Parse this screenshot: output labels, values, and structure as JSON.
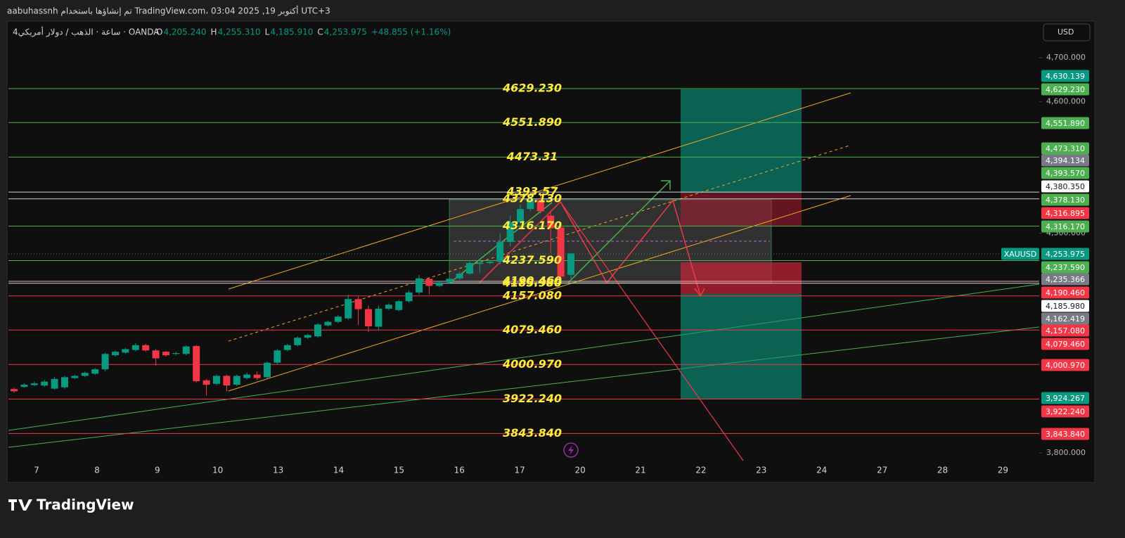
{
  "header": {
    "author_line": "aabuhassnh تم إنشاؤها باستخدام TradingView.com، 03:04 2025 ,19 أكتوبر UTC+3",
    "symbol": "4ساعة · الذهب / دولار أمريكي · OANDA",
    "ohlc": [
      {
        "key": "O",
        "value": "4,205.240"
      },
      {
        "key": "H",
        "value": "4,255.310"
      },
      {
        "key": "L",
        "value": "4,185.910"
      },
      {
        "key": "C",
        "value": "4,253.975"
      }
    ],
    "change": "+48.855 (+1.16%)",
    "currency": "USD"
  },
  "chart_data": {
    "type": "candlestick",
    "up_color": "#089981",
    "down_color": "#f23645",
    "candles": {
      "open": [
        3945,
        3950,
        3954,
        3953,
        3946,
        3949,
        3970,
        3975,
        3980,
        3990,
        4022,
        4028,
        4034,
        4045,
        4033,
        4030,
        4025,
        4025,
        4043,
        3965,
        3957,
        3975,
        3955,
        3970,
        3978,
        3972,
        4005,
        4034,
        4045,
        4062,
        4065,
        4090,
        4098,
        4106,
        4150,
        4127,
        4087,
        4128,
        4125,
        4145,
        4165,
        4196,
        4180,
        4188,
        4197,
        4208,
        4230,
        4232,
        4235,
        4280,
        4325,
        4355,
        4375,
        4340,
        4313,
        4205.24
      ],
      "high": [
        3948,
        3958,
        3962,
        3966,
        3972,
        3975,
        3978,
        3985,
        3993,
        4028,
        4033,
        4039,
        4050,
        4048,
        4036,
        4032,
        4030,
        4045,
        4045,
        3968,
        3978,
        3978,
        3978,
        3982,
        3985,
        4008,
        4036,
        4048,
        4065,
        4071,
        4095,
        4101,
        4113,
        4160,
        4158,
        4135,
        4135,
        4140,
        4148,
        4170,
        4205,
        4200,
        4192,
        4199,
        4212,
        4236,
        4242,
        4238,
        4300,
        4340,
        4365,
        4386,
        4392,
        4348,
        4318,
        4255.31
      ],
      "low": [
        3937,
        3948,
        3952,
        3950,
        3944,
        3946,
        3968,
        3972,
        3977,
        3985,
        4019,
        4025,
        4031,
        4030,
        3998,
        4019,
        4022,
        4022,
        3960,
        3930,
        3954,
        3940,
        3952,
        3967,
        3965,
        3969,
        4002,
        4031,
        4042,
        4059,
        4062,
        4087,
        4095,
        4103,
        4091,
        4075,
        4080,
        4125,
        4122,
        4142,
        4160,
        4160,
        4177,
        4185,
        4194,
        4205,
        4210,
        4229,
        4228,
        4270,
        4318,
        4350,
        4345,
        4255,
        4195,
        4185.91
      ],
      "close": [
        3940,
        3955,
        3958,
        3962,
        3968,
        3972,
        3975,
        3982,
        3990,
        4025,
        4030,
        4036,
        4045,
        4033,
        4015,
        4022,
        4027,
        4042,
        3963,
        3955,
        3975,
        3953,
        3975,
        3978,
        3970,
        4005,
        4033,
        4045,
        4062,
        4068,
        4092,
        4098,
        4110,
        4150,
        4127,
        4088,
        4128,
        4137,
        4145,
        4165,
        4197,
        4180,
        4188,
        4196,
        4208,
        4232,
        4233,
        4235,
        4280,
        4325,
        4355,
        4375,
        4350,
        4311,
        4201,
        4253.975
      ]
    },
    "ylim": [
      3774,
      4783
    ],
    "yticks": [
      {
        "value": 4700,
        "label": "4,700.000"
      },
      {
        "value": 4600,
        "label": "4,600.000"
      },
      {
        "value": 4300,
        "label": "4,300.000"
      },
      {
        "value": 3800,
        "label": "3,800.000"
      }
    ],
    "x_labels": [
      "7",
      "8",
      "9",
      "10",
      "13",
      "14",
      "15",
      "16",
      "17",
      "20",
      "21",
      "22",
      "23",
      "24",
      "27",
      "28",
      "29"
    ],
    "levels": [
      {
        "value": 4629.23,
        "label": "4629.230",
        "color": "#4caf50"
      },
      {
        "value": 4551.89,
        "label": "4551.890",
        "color": "#4caf50"
      },
      {
        "value": 4473.31,
        "color": "#4caf50"
      },
      {
        "value": 4393.57,
        "color": "#d1d4dc"
      },
      {
        "value": 4378.13,
        "label": "4378.130",
        "color": "#d1d4dc"
      },
      {
        "value": 4316.17,
        "label": "4316.170",
        "color": "#4caf50"
      },
      {
        "value": 4237.59,
        "label": "4237.590",
        "color": "#4caf50"
      },
      {
        "value": 4190.46,
        "label": "4190.460",
        "color": "#f7a9b3"
      },
      {
        "value": 4185.98,
        "label": "4185.980",
        "color": "#d1d4dc"
      },
      {
        "value": 4157.08,
        "label": "4157.080",
        "color": "#f23645"
      },
      {
        "value": 4079.46,
        "label": "4079.460",
        "color": "#f23645"
      },
      {
        "value": 4000.97,
        "label": "4000.970",
        "color": "#f23645"
      },
      {
        "value": 3922.24,
        "label": "3922.240",
        "color": "#f23645"
      },
      {
        "value": 3843.84,
        "label": "3843.840",
        "color": "#f23645"
      }
    ],
    "symbol_badge": "XAUUSD",
    "price_badges": [
      {
        "label": "4,630.139",
        "color": "#089981"
      },
      {
        "label": "4,629.230",
        "color": "#4caf50"
      },
      {
        "label": "4,551.890",
        "color": "#4caf50"
      },
      {
        "label": "4,473.310",
        "color": "#4caf50"
      },
      {
        "label": "4,394.134",
        "color": "#787b86"
      },
      {
        "label": "4,393.570",
        "color": "#4caf50"
      },
      {
        "label": "4,380.350",
        "color": "#ffffff"
      },
      {
        "label": "4,378.130",
        "color": "#4caf50"
      },
      {
        "label": "4,316.895",
        "color": "#f23645"
      },
      {
        "label": "4,316.170",
        "color": "#4caf50"
      },
      {
        "label": "4,253.975",
        "color": "#089981"
      },
      {
        "label": "4,237.590",
        "color": "#4caf50"
      },
      {
        "label": "4,235.366",
        "color": "#787b86"
      },
      {
        "label": "4,190.460",
        "color": "#f23645"
      },
      {
        "label": "4,185.980",
        "color": "#ffffff"
      },
      {
        "label": "4,162.419",
        "color": "#787b86"
      },
      {
        "label": "4,157.080",
        "color": "#f23645"
      },
      {
        "label": "4,079.460",
        "color": "#f23645"
      },
      {
        "label": "4,000.970",
        "color": "#f23645"
      },
      {
        "label": "3,924.267",
        "color": "#089981"
      },
      {
        "label": "3,922.240",
        "color": "#f23645"
      },
      {
        "label": "3,843.840",
        "color": "#f23645"
      }
    ]
  },
  "footer": {
    "logo": "TradingView"
  }
}
